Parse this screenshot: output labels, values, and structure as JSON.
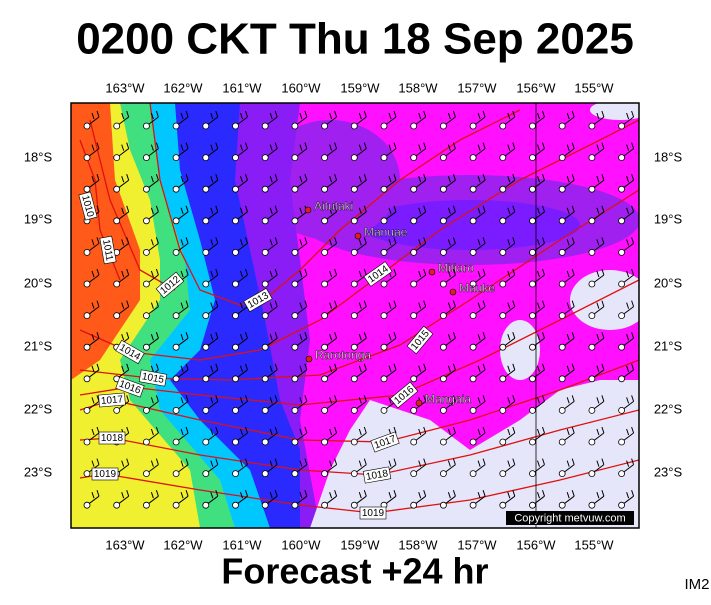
{
  "header": {
    "title": "0200 CKT Thu 18 Sep 2025"
  },
  "map": {
    "longitudes": [
      "163°W",
      "162°W",
      "161°W",
      "160°W",
      "159°W",
      "158°W",
      "157°W",
      "156°W",
      "155°W"
    ],
    "latitudes": [
      "18°S",
      "19°S",
      "20°S",
      "21°S",
      "22°S",
      "23°S"
    ],
    "places": [
      "Aitutaki",
      "Manuae",
      "Mitiaro",
      "Mauke",
      "Rarotonga",
      "Mangaia"
    ],
    "isobar_labels": [
      1010,
      1011,
      1012,
      1013,
      1014,
      1015,
      1014,
      1015,
      1016,
      1017,
      1016,
      1017,
      1018,
      1019,
      1018,
      1019
    ],
    "copyright": "Copyright metvuw.com"
  },
  "footer": {
    "forecast": "Forecast +24 hr",
    "image_id": "IM2"
  }
}
